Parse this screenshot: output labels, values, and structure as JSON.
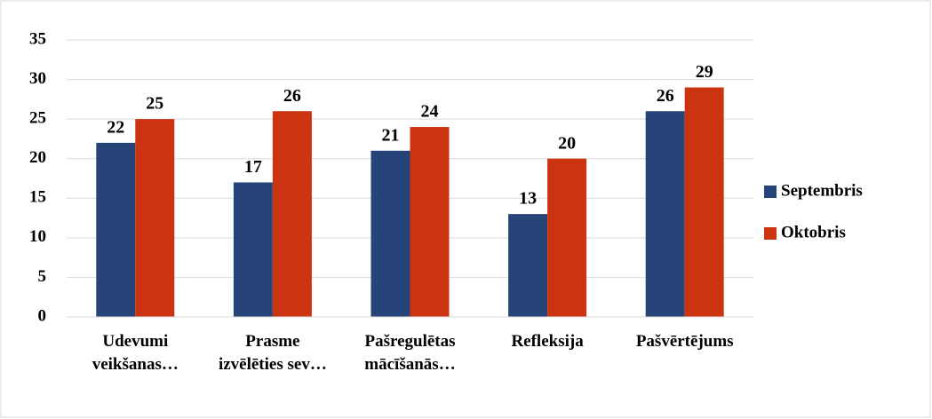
{
  "chart_data": {
    "type": "bar",
    "categories": [
      "Udevumi veikšanas…",
      "Prasme izvēlēties sev…",
      "Pašregulētas mācīšanās…",
      "Refleksija",
      "Pašvērtējums"
    ],
    "series": [
      {
        "name": "Septembris",
        "color": "#264478",
        "values": [
          22,
          17,
          21,
          13,
          26
        ]
      },
      {
        "name": "Oktobris",
        "color": "#cc3311",
        "values": [
          25,
          26,
          24,
          20,
          29
        ]
      }
    ],
    "ylim": [
      0,
      35
    ],
    "yticks": [
      0,
      5,
      10,
      15,
      20,
      25,
      30,
      35
    ],
    "grid": true,
    "legend": "right"
  }
}
